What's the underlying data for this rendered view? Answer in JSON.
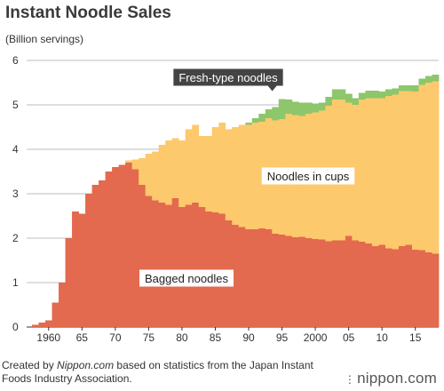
{
  "title": "Instant Noodle Sales",
  "credit": {
    "prefix": "Created by ",
    "site": "Nippon.com",
    "suffix": " based on statistics from the Japan Instant Foods Industry Association."
  },
  "brand": "nippon.com",
  "colors": {
    "bagged": "#e36a4e",
    "cups": "#fdc96d",
    "fresh": "#8dc66b",
    "label_bg_dark": "#444444",
    "label_bg_light": "#ffffff",
    "gridline": "#bdbdbd"
  },
  "chart_data": {
    "type": "area",
    "style": "stacked-bars",
    "ylabel": "(Billion servings)",
    "ylim": [
      0,
      6
    ],
    "yticks": [
      0,
      1,
      2,
      3,
      4,
      5,
      6
    ],
    "xticks": [
      {
        "year": 1960,
        "label": "1960"
      },
      {
        "year": 1965,
        "label": "65"
      },
      {
        "year": 1970,
        "label": "70"
      },
      {
        "year": 1975,
        "label": "75"
      },
      {
        "year": 1980,
        "label": "80"
      },
      {
        "year": 1985,
        "label": "85"
      },
      {
        "year": 1990,
        "label": "90"
      },
      {
        "year": 1995,
        "label": "95"
      },
      {
        "year": 2000,
        "label": "2000"
      },
      {
        "year": 2005,
        "label": "05"
      },
      {
        "year": 2010,
        "label": "10"
      },
      {
        "year": 2015,
        "label": "15"
      }
    ],
    "x": [
      1958,
      1959,
      1960,
      1961,
      1962,
      1963,
      1964,
      1965,
      1966,
      1967,
      1968,
      1969,
      1970,
      1971,
      1972,
      1973,
      1974,
      1975,
      1976,
      1977,
      1978,
      1979,
      1980,
      1981,
      1982,
      1983,
      1984,
      1985,
      1986,
      1987,
      1988,
      1989,
      1990,
      1991,
      1992,
      1993,
      1994,
      1995,
      1996,
      1997,
      1998,
      1999,
      2000,
      2001,
      2002,
      2003,
      2004,
      2005,
      2006,
      2007,
      2008,
      2009,
      2010,
      2011,
      2012,
      2013,
      2014,
      2015,
      2016,
      2017,
      2018
    ],
    "series": [
      {
        "name": "Bagged noodles",
        "values": [
          0.05,
          0.1,
          0.15,
          0.55,
          1.0,
          2.0,
          2.6,
          2.55,
          3.0,
          3.2,
          3.3,
          3.5,
          3.6,
          3.65,
          3.7,
          3.55,
          3.2,
          2.95,
          2.85,
          2.8,
          2.75,
          2.9,
          2.7,
          2.75,
          2.8,
          2.7,
          2.6,
          2.58,
          2.55,
          2.4,
          2.3,
          2.25,
          2.2,
          2.2,
          2.22,
          2.2,
          2.1,
          2.08,
          2.05,
          2.02,
          2.03,
          2.0,
          1.98,
          1.97,
          1.93,
          1.95,
          1.95,
          2.05,
          1.95,
          1.92,
          1.88,
          1.82,
          1.85,
          1.77,
          1.75,
          1.82,
          1.85,
          1.74,
          1.73,
          1.68,
          1.65
        ]
      },
      {
        "name": "Noodles in cups",
        "values": [
          0,
          0,
          0,
          0,
          0,
          0,
          0,
          0,
          0,
          0,
          0,
          0,
          0,
          0,
          0.05,
          0.22,
          0.6,
          0.95,
          1.1,
          1.3,
          1.45,
          1.35,
          1.5,
          1.7,
          1.75,
          1.6,
          1.7,
          1.92,
          2.05,
          2.05,
          2.2,
          2.3,
          2.35,
          2.4,
          2.4,
          2.5,
          2.55,
          2.6,
          2.75,
          2.75,
          2.72,
          2.8,
          2.85,
          2.9,
          3.05,
          3.17,
          3.17,
          3.0,
          3.05,
          3.2,
          3.27,
          3.33,
          3.3,
          3.43,
          3.48,
          3.49,
          3.46,
          3.56,
          3.72,
          3.82,
          3.88
        ]
      },
      {
        "name": "Fresh-type noodles",
        "values": [
          0,
          0,
          0,
          0,
          0,
          0,
          0,
          0,
          0,
          0,
          0,
          0,
          0,
          0,
          0,
          0,
          0,
          0,
          0,
          0,
          0,
          0,
          0,
          0,
          0,
          0,
          0,
          0,
          0,
          0,
          0,
          0,
          0.05,
          0.1,
          0.18,
          0.2,
          0.3,
          0.45,
          0.32,
          0.3,
          0.3,
          0.25,
          0.2,
          0.18,
          0.2,
          0.23,
          0.23,
          0.2,
          0.15,
          0.15,
          0.17,
          0.17,
          0.15,
          0.15,
          0.14,
          0.13,
          0.13,
          0.14,
          0.14,
          0.15,
          0.15
        ]
      }
    ],
    "labels": {
      "bagged": "Bagged noodles",
      "cups": "Noodles in cups",
      "fresh": "Fresh-type noodles"
    }
  }
}
